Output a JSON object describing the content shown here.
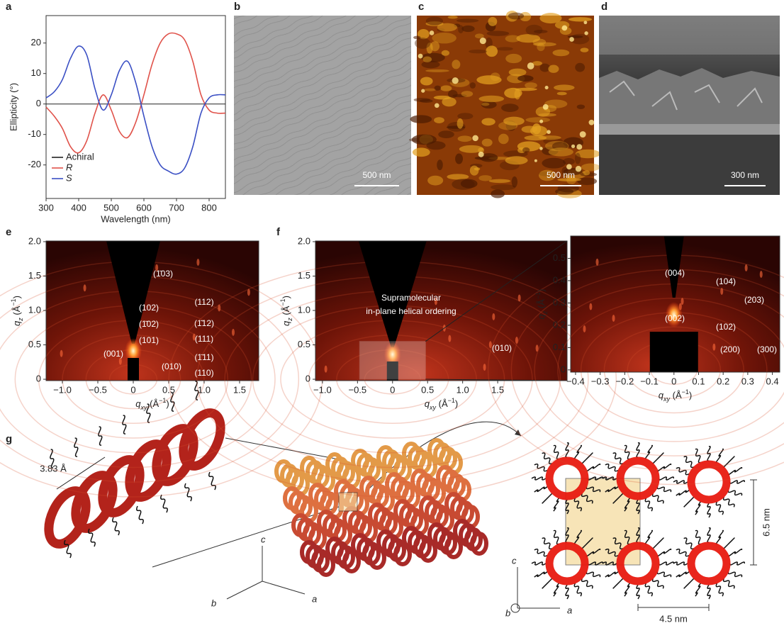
{
  "panel_letters": [
    "a",
    "b",
    "c",
    "d",
    "e",
    "f",
    "g"
  ],
  "chart_data": [
    {
      "type": "line",
      "xlabel": "Wavelength (nm)",
      "ylabel": "Ellipticity (°)",
      "x": [
        300,
        325,
        350,
        375,
        400,
        425,
        450,
        475,
        500,
        525,
        550,
        575,
        600,
        625,
        650,
        675,
        700,
        725,
        750,
        775,
        800,
        825,
        850
      ],
      "xlim": [
        300,
        850
      ],
      "ylim": [
        -31,
        29
      ],
      "xticks": [
        300,
        400,
        500,
        600,
        700,
        800
      ],
      "yticks": [
        -20,
        -10,
        0,
        10,
        20
      ],
      "legend": "lower left",
      "series": [
        {
          "name": "Achiral",
          "color": "#222222",
          "values": [
            0,
            0,
            0,
            0,
            0,
            0,
            0,
            0,
            0,
            0,
            0,
            0,
            0,
            0,
            0,
            0,
            0,
            0,
            0,
            0,
            0,
            0,
            0
          ]
        },
        {
          "name": "R",
          "color": "#e0524a",
          "values": [
            -1,
            -4,
            -8,
            -14,
            -16,
            -12,
            -3,
            3,
            -2,
            -9,
            -11,
            -6,
            3,
            13,
            20,
            23,
            23,
            21,
            14,
            3,
            -2,
            -3,
            -3
          ]
        },
        {
          "name": "S",
          "color": "#3a4fc4",
          "values": [
            2,
            4,
            8,
            15,
            19,
            16,
            5,
            -2,
            3,
            11,
            14,
            7,
            -4,
            -14,
            -20,
            -22,
            -23,
            -21,
            -14,
            -3,
            2,
            3,
            3
          ]
        }
      ]
    },
    {
      "type": "giwaxs",
      "xlabel_parts": [
        "q",
        "xy",
        " (Å",
        "−1",
        ")"
      ],
      "ylabel_parts": [
        "q",
        "z",
        " (Å",
        "−1",
        ")"
      ],
      "xlim": [
        -1.23,
        1.77
      ],
      "ylim": [
        -0.02,
        2.01
      ],
      "xticks": [
        {
          "value": -1,
          "label": "−1.0"
        },
        {
          "value": -0.5,
          "label": "−0.5"
        },
        0,
        0.5,
        {
          "value": 1,
          "label": "1.0"
        },
        1.5
      ],
      "yticks": [
        0,
        0.5,
        {
          "value": 1,
          "label": "1.0"
        },
        1.5,
        {
          "value": 2,
          "label": "2.0"
        }
      ],
      "annotations": [
        "(1̄03)",
        "(102)",
        "(1̄02)",
        "(101)",
        "(001)",
        "(010)",
        "(112)",
        "(1̄12)",
        "(111)",
        "(1̄11)",
        "(110)"
      ]
    },
    {
      "type": "giwaxs",
      "xlabel_parts": [
        "q",
        "xy",
        " (Å",
        "−1",
        ")"
      ],
      "ylabel_parts": [
        "q",
        "z",
        " (Å",
        "−1",
        ")"
      ],
      "xlim": [
        -1.1,
        2.49
      ],
      "ylim": [
        -0.02,
        2.01
      ],
      "xticks": [
        {
          "value": -1,
          "label": "−1.0"
        },
        {
          "value": -0.5,
          "label": "−0.5"
        },
        0,
        0.5,
        {
          "value": 1,
          "label": "1.0"
        },
        1.5
      ],
      "yticks": [
        0,
        0.5,
        {
          "value": 1,
          "label": "1.0"
        },
        1.5,
        {
          "value": 2,
          "label": "2.0"
        }
      ],
      "annotations": [
        "Supramolecular",
        "in-plane helical ordering",
        "(010)"
      ]
    },
    {
      "type": "giwaxs",
      "xlabel_parts": [
        "q",
        "xy",
        " (Å",
        "−1",
        ")"
      ],
      "ylabel_parts": [
        "q",
        "z",
        " (Å",
        "−1",
        ")"
      ],
      "xlim": [
        -0.42,
        0.43
      ],
      "ylim": [
        -0.01,
        0.6
      ],
      "xticks": [
        {
          "value": -0.4,
          "label": "−0.4"
        },
        {
          "value": -0.3,
          "label": "−0.3"
        },
        {
          "value": -0.2,
          "label": "−0.2"
        },
        {
          "value": -0.1,
          "label": "−0.1"
        },
        0,
        0.1,
        0.2,
        0.3,
        0.4
      ],
      "yticks": [
        0,
        0.1,
        0.2,
        0.3,
        0.4,
        0.5
      ],
      "annotations": [
        "(004)",
        "(104)",
        "(203)",
        "(002)",
        "(102)",
        "(200)",
        "(300)"
      ]
    }
  ],
  "micrographs": [
    {
      "scale_bar": "500 nm"
    },
    {
      "scale_bar": "500 nm"
    },
    {
      "scale_bar": "300 nm"
    }
  ],
  "illustration": {
    "pitch": "3.83 Å",
    "stack_axes": [
      "c",
      "b",
      "a"
    ],
    "lattice_axes": [
      "c",
      "b",
      "a"
    ],
    "height": "6.5 nm",
    "width": "4.5 nm"
  }
}
